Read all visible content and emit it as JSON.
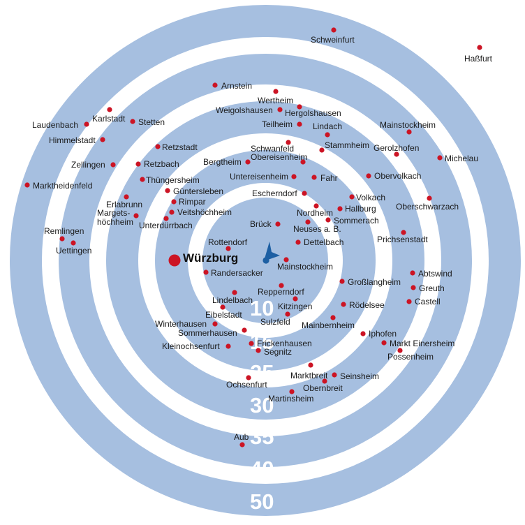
{
  "colors": {
    "ring_fill": "#a6bfe0",
    "gap_fill": "#ffffff",
    "marker": "#cc1424",
    "center_marker": "#1d5fa3"
  },
  "center_icon": "navigation-arrow-icon",
  "city": {
    "name": "Würzburg"
  },
  "ring_labels": [
    "10",
    "15",
    "25",
    "30",
    "35",
    "40",
    "50"
  ],
  "towns": [
    {
      "name": "Schweinfurt"
    },
    {
      "name": "Haßfurt"
    },
    {
      "name": "Arnstein"
    },
    {
      "name": "Wertheim"
    },
    {
      "name": "Weigolshausen"
    },
    {
      "name": "Hergolshausen"
    },
    {
      "name": "Karlstadt"
    },
    {
      "name": "Laudenbach"
    },
    {
      "name": "Stetten"
    },
    {
      "name": "Teilheim"
    },
    {
      "name": "Lindach"
    },
    {
      "name": "Mainstockheim"
    },
    {
      "name": "Himmelstadt"
    },
    {
      "name": "Retzstadt"
    },
    {
      "name": "Schwanfeld"
    },
    {
      "name": "Stammheim"
    },
    {
      "name": "Gerolzhofen"
    },
    {
      "name": "Michelau"
    },
    {
      "name": "Zellingen"
    },
    {
      "name": "Retzbach"
    },
    {
      "name": "Bergtheim"
    },
    {
      "name": "Obereisenheim"
    },
    {
      "name": "Untereisenheim"
    },
    {
      "name": "Fahr"
    },
    {
      "name": "Obervolkach"
    },
    {
      "name": "Marktheidenfeld"
    },
    {
      "name": "Thüngersheim"
    },
    {
      "name": "Güntersleben"
    },
    {
      "name": "Escherndorf"
    },
    {
      "name": "Volkach"
    },
    {
      "name": "Oberschwarzach"
    },
    {
      "name": "Erlabrunn"
    },
    {
      "name": "Rimpar"
    },
    {
      "name": "Hallburg"
    },
    {
      "name": "Margets-"
    },
    {
      "name": "höchheim"
    },
    {
      "name": "Veitshöchheim"
    },
    {
      "name": "Nordheim"
    },
    {
      "name": "Unterdürrbach"
    },
    {
      "name": "Sommerach"
    },
    {
      "name": "Remlingen"
    },
    {
      "name": "Brück"
    },
    {
      "name": "Neuses a. B."
    },
    {
      "name": "Prichsenstadt"
    },
    {
      "name": "Uettingen"
    },
    {
      "name": "Rottendorf"
    },
    {
      "name": "Dettelbach"
    },
    {
      "name": "Mainstockheim"
    },
    {
      "name": "Randersacker"
    },
    {
      "name": "Abtswind"
    },
    {
      "name": "Großlangheim"
    },
    {
      "name": "Greuth"
    },
    {
      "name": "Repperndorf"
    },
    {
      "name": "Lindelbach"
    },
    {
      "name": "Castell"
    },
    {
      "name": "Kitzingen"
    },
    {
      "name": "Rödelsee"
    },
    {
      "name": "Eibelstadt"
    },
    {
      "name": "Sulzfeld"
    },
    {
      "name": "Mainbernheim"
    },
    {
      "name": "Winterhausen"
    },
    {
      "name": "Sommerhausen"
    },
    {
      "name": "Iphofen"
    },
    {
      "name": "Frickenhausen"
    },
    {
      "name": "Markt Einersheim"
    },
    {
      "name": "Kleinochsenfurt"
    },
    {
      "name": "Segnitz"
    },
    {
      "name": "Possenheim"
    },
    {
      "name": "Marktbreit"
    },
    {
      "name": "Seinsheim"
    },
    {
      "name": "Ochsenfurt"
    },
    {
      "name": "Obernbreit"
    },
    {
      "name": "Martinsheim"
    },
    {
      "name": "Aub"
    }
  ]
}
